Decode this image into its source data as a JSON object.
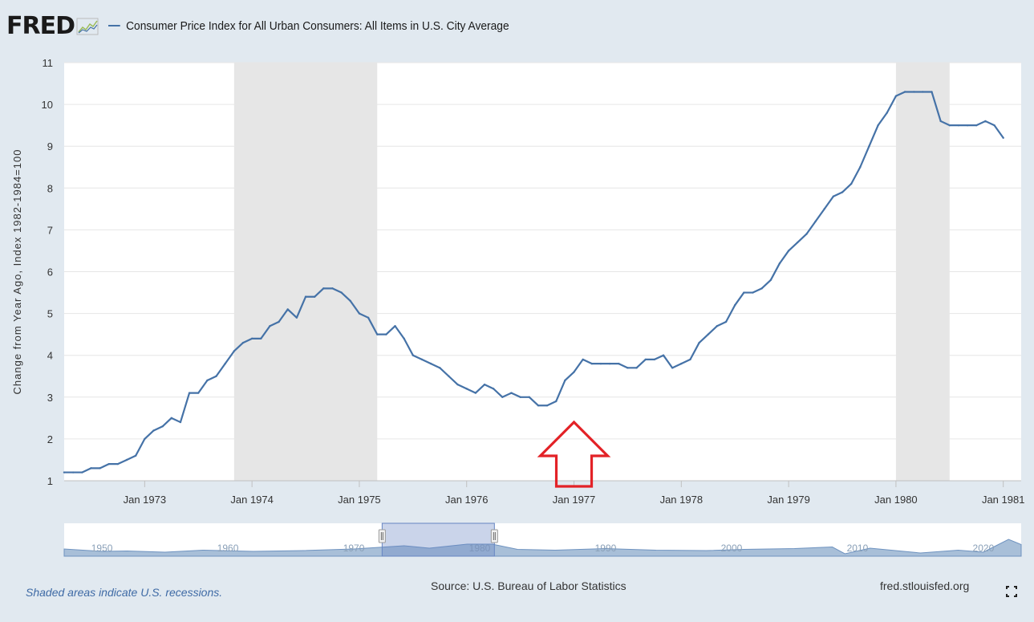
{
  "header": {
    "logo": "FRED",
    "series_title": "Consumer Price Index for All Urban Consumers: All Items in U.S. City Average"
  },
  "colors": {
    "line": "#4572a7",
    "recession": "#e6e6e6",
    "background": "#e1e9f0",
    "plot": "#ffffff",
    "annotation_arrow": "#e32227"
  },
  "chart_data": {
    "type": "line",
    "ylabel": "Change from Year Ago, Index 1982-1984=100",
    "ylim": [
      1,
      11
    ],
    "yticks": [
      1,
      2,
      3,
      4,
      5,
      6,
      7,
      8,
      9,
      10,
      11
    ],
    "xlim": [
      "1972-04",
      "1981-03"
    ],
    "xticks": [
      "Jan 1973",
      "Jan 1974",
      "Jan 1975",
      "Jan 1976",
      "Jan 1977",
      "Jan 1978",
      "Jan 1979",
      "Jan 1980",
      "Jan 1981"
    ],
    "grid": true,
    "recessions": [
      [
        "1973-11",
        "1975-03"
      ],
      [
        "1980-01",
        "1980-07"
      ]
    ],
    "series": [
      {
        "name": "Consumer Price Index for All Urban Consumers: All Items in U.S. City Average",
        "points": [
          [
            "1972-04",
            1.2
          ],
          [
            "1972-05",
            1.2
          ],
          [
            "1972-06",
            1.2
          ],
          [
            "1972-07",
            1.3
          ],
          [
            "1972-08",
            1.3
          ],
          [
            "1972-09",
            1.4
          ],
          [
            "1972-10",
            1.4
          ],
          [
            "1972-11",
            1.5
          ],
          [
            "1972-12",
            1.6
          ],
          [
            "1973-01",
            2.0
          ],
          [
            "1973-02",
            2.2
          ],
          [
            "1973-03",
            2.3
          ],
          [
            "1973-04",
            2.5
          ],
          [
            "1973-05",
            2.4
          ],
          [
            "1973-06",
            3.1
          ],
          [
            "1973-07",
            3.1
          ],
          [
            "1973-08",
            3.4
          ],
          [
            "1973-09",
            3.5
          ],
          [
            "1973-10",
            3.8
          ],
          [
            "1973-11",
            4.1
          ],
          [
            "1973-12",
            4.3
          ],
          [
            "1974-01",
            4.4
          ],
          [
            "1974-02",
            4.4
          ],
          [
            "1974-03",
            4.7
          ],
          [
            "1974-04",
            4.8
          ],
          [
            "1974-05",
            5.1
          ],
          [
            "1974-06",
            4.9
          ],
          [
            "1974-07",
            5.4
          ],
          [
            "1974-08",
            5.4
          ],
          [
            "1974-09",
            5.6
          ],
          [
            "1974-10",
            5.6
          ],
          [
            "1974-11",
            5.5
          ],
          [
            "1974-12",
            5.3
          ],
          [
            "1975-01",
            5.0
          ],
          [
            "1975-02",
            4.9
          ],
          [
            "1975-03",
            4.5
          ],
          [
            "1975-04",
            4.5
          ],
          [
            "1975-05",
            4.7
          ],
          [
            "1975-06",
            4.4
          ],
          [
            "1975-07",
            4.0
          ],
          [
            "1975-08",
            3.9
          ],
          [
            "1975-09",
            3.8
          ],
          [
            "1975-10",
            3.7
          ],
          [
            "1975-11",
            3.5
          ],
          [
            "1975-12",
            3.3
          ],
          [
            "1976-01",
            3.2
          ],
          [
            "1976-02",
            3.1
          ],
          [
            "1976-03",
            3.3
          ],
          [
            "1976-04",
            3.2
          ],
          [
            "1976-05",
            3.0
          ],
          [
            "1976-06",
            3.1
          ],
          [
            "1976-07",
            3.0
          ],
          [
            "1976-08",
            3.0
          ],
          [
            "1976-09",
            2.8
          ],
          [
            "1976-10",
            2.8
          ],
          [
            "1976-11",
            2.9
          ],
          [
            "1976-12",
            3.4
          ],
          [
            "1977-01",
            3.6
          ],
          [
            "1977-02",
            3.9
          ],
          [
            "1977-03",
            3.8
          ],
          [
            "1977-04",
            3.8
          ],
          [
            "1977-05",
            3.8
          ],
          [
            "1977-06",
            3.8
          ],
          [
            "1977-07",
            3.7
          ],
          [
            "1977-08",
            3.7
          ],
          [
            "1977-09",
            3.9
          ],
          [
            "1977-10",
            3.9
          ],
          [
            "1977-11",
            4.0
          ],
          [
            "1977-12",
            3.7
          ],
          [
            "1978-01",
            3.8
          ],
          [
            "1978-02",
            3.9
          ],
          [
            "1978-03",
            4.3
          ],
          [
            "1978-04",
            4.5
          ],
          [
            "1978-05",
            4.7
          ],
          [
            "1978-06",
            4.8
          ],
          [
            "1978-07",
            5.2
          ],
          [
            "1978-08",
            5.5
          ],
          [
            "1978-09",
            5.5
          ],
          [
            "1978-10",
            5.6
          ],
          [
            "1978-11",
            5.8
          ],
          [
            "1978-12",
            6.2
          ],
          [
            "1979-01",
            6.5
          ],
          [
            "1979-02",
            6.7
          ],
          [
            "1979-03",
            6.9
          ],
          [
            "1979-04",
            7.2
          ],
          [
            "1979-05",
            7.5
          ],
          [
            "1979-06",
            7.8
          ],
          [
            "1979-07",
            7.9
          ],
          [
            "1979-08",
            8.1
          ],
          [
            "1979-09",
            8.5
          ],
          [
            "1979-10",
            9.0
          ],
          [
            "1979-11",
            9.5
          ],
          [
            "1979-12",
            9.8
          ],
          [
            "1980-01",
            10.2
          ],
          [
            "1980-02",
            10.3
          ],
          [
            "1980-03",
            10.3
          ],
          [
            "1980-04",
            10.3
          ],
          [
            "1980-05",
            10.3
          ],
          [
            "1980-06",
            9.6
          ],
          [
            "1980-07",
            9.5
          ],
          [
            "1980-08",
            9.5
          ],
          [
            "1980-09",
            9.5
          ],
          [
            "1980-10",
            9.5
          ],
          [
            "1980-11",
            9.6
          ],
          [
            "1980-12",
            9.5
          ],
          [
            "1981-01",
            9.2
          ]
        ]
      }
    ],
    "annotations": [
      {
        "type": "arrow",
        "points_to": "1977-01",
        "direction": "up"
      }
    ]
  },
  "navigator": {
    "labels": [
      "1950",
      "1960",
      "1970",
      "1980",
      "1990",
      "2000",
      "2010",
      "2020"
    ]
  },
  "footer": {
    "note": "Shaded areas indicate U.S. recessions.",
    "source": "Source: U.S. Bureau of Labor Statistics",
    "url": "fred.stlouisfed.org"
  }
}
